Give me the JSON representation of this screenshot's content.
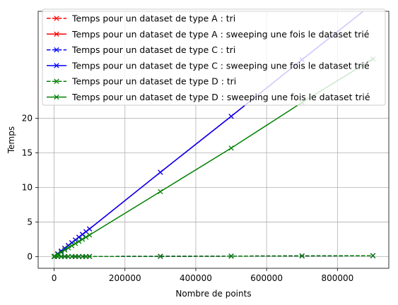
{
  "chart_data": {
    "type": "line",
    "title": "",
    "xlabel": "Nombre de points",
    "ylabel": "Temps",
    "xlim": [
      -45000,
      945000
    ],
    "ylim": [
      -1.7,
      35.5
    ],
    "grid": true,
    "legend_position": "top-left",
    "x_ticks": [
      0,
      200000,
      400000,
      600000,
      800000
    ],
    "x_tick_labels": [
      "0",
      "200000",
      "400000",
      "600000",
      "800000"
    ],
    "y_ticks": [
      0,
      5,
      10,
      15,
      20
    ],
    "y_tick_labels": [
      "0",
      "5",
      "10",
      "15",
      "20"
    ],
    "x": [
      10,
      100,
      1000,
      10000,
      20000,
      30000,
      40000,
      50000,
      60000,
      70000,
      80000,
      90000,
      100000,
      300000,
      500000,
      700000,
      900000
    ],
    "series": [
      {
        "name": "Temps pour un dataset de type A : tri",
        "color": "#ff0000",
        "line_style": "dashed",
        "marker": "x",
        "values": [
          0.0,
          0.0,
          0.0,
          0.0,
          0.0,
          0.0,
          0.0,
          0.0,
          0.0,
          0.0,
          0.0,
          0.0,
          0.01,
          0.03,
          0.06,
          0.09,
          0.12
        ]
      },
      {
        "name": "Temps pour un dataset de type A : sweeping une fois le dataset trié",
        "color": "#ff0000",
        "line_style": "solid",
        "marker": "x",
        "values": [
          0.0,
          0.0,
          0.04,
          0.4,
          0.8,
          1.2,
          1.6,
          2.0,
          2.4,
          2.8,
          3.2,
          3.6,
          4.0,
          12.2,
          20.3,
          28.5,
          36.6
        ]
      },
      {
        "name": "Temps pour un dataset de type C : tri",
        "color": "#0000ff",
        "line_style": "dashed",
        "marker": "x",
        "values": [
          0.0,
          0.0,
          0.0,
          0.0,
          0.0,
          0.0,
          0.0,
          0.0,
          0.0,
          0.0,
          0.0,
          0.0,
          0.01,
          0.03,
          0.06,
          0.09,
          0.12
        ]
      },
      {
        "name": "Temps pour un dataset de type C : sweeping une fois le dataset trié",
        "color": "#0000ff",
        "line_style": "solid",
        "marker": "x",
        "values": [
          0.0,
          0.0,
          0.04,
          0.4,
          0.8,
          1.2,
          1.6,
          2.0,
          2.4,
          2.8,
          3.2,
          3.6,
          4.0,
          12.2,
          20.3,
          28.5,
          36.6
        ]
      },
      {
        "name": "Temps pour un dataset de type D : tri",
        "color": "#008000",
        "line_style": "dashed",
        "marker": "x",
        "values": [
          0.0,
          0.0,
          0.0,
          0.0,
          0.0,
          0.0,
          0.0,
          0.0,
          0.0,
          0.0,
          0.0,
          0.0,
          0.01,
          0.03,
          0.06,
          0.09,
          0.12
        ]
      },
      {
        "name": "Temps pour un dataset de type D : sweeping une fois le dataset trié",
        "color": "#008000",
        "line_style": "solid",
        "marker": "x",
        "values": [
          0.0,
          0.0,
          0.03,
          0.31,
          0.62,
          0.94,
          1.25,
          1.56,
          1.88,
          2.19,
          2.5,
          2.81,
          3.12,
          9.4,
          15.7,
          22.3,
          28.6
        ]
      }
    ]
  }
}
